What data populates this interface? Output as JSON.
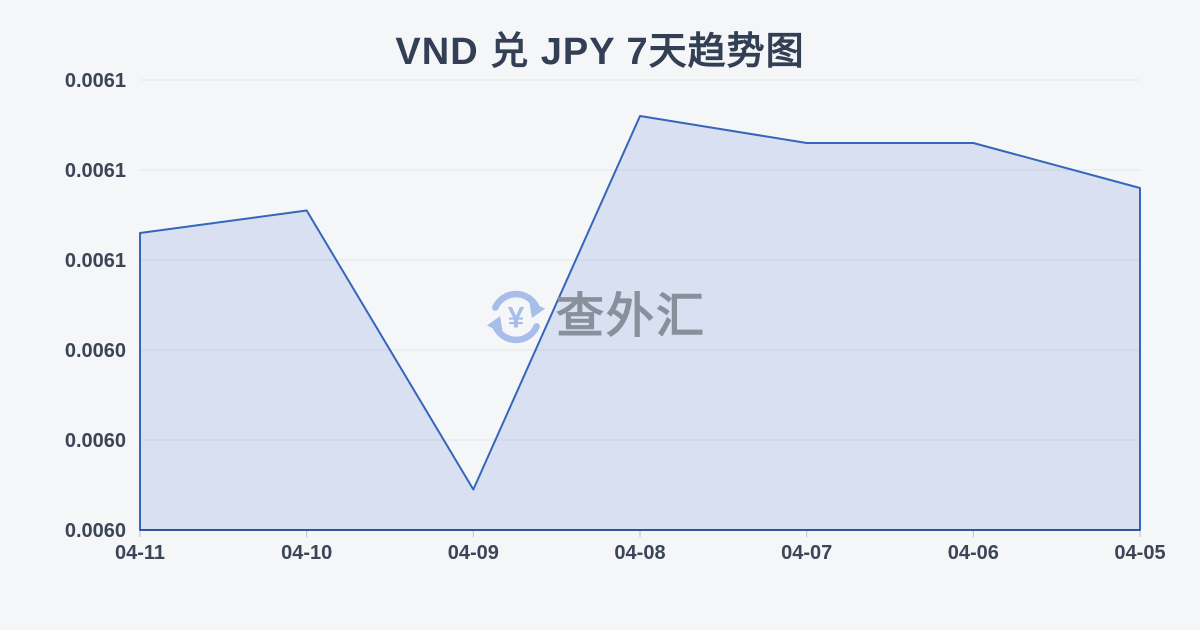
{
  "page": {
    "background": "#f5f6f8"
  },
  "header": {
    "title": "VND 兑 JPY 7天趋势图"
  },
  "watermark": {
    "label": "查外汇",
    "icon": "currency-exchange-refresh-icon",
    "icon_symbol": "¥",
    "icon_color": "#a7bdea",
    "text_color": "#8a909b"
  },
  "chart_data": {
    "type": "area",
    "title": "VND 兑 JPY 7天趋势图",
    "categories": [
      "04-11",
      "04-10",
      "04-09",
      "04-08",
      "04-07",
      "04-06",
      "04-05"
    ],
    "values": [
      0.006066,
      0.006071,
      0.006009,
      0.006092,
      0.006086,
      0.006086,
      0.006076
    ],
    "xlabel": "",
    "ylabel": "",
    "ylim": [
      0.006,
      0.0061
    ],
    "y_ticks": [
      0.006,
      0.00602,
      0.00604,
      0.00606,
      0.00608,
      0.0061
    ],
    "y_tick_labels_bottom_to_top": [
      "0.0060",
      "0.0060",
      "0.0060",
      "0.0061",
      "0.0061",
      "0.0061"
    ],
    "grid": true,
    "legend": false,
    "colors": {
      "line": "#3466b9",
      "fill": "rgba(90,125,210,0.18)",
      "grid": "#e3e5ea",
      "axis_line": "#33549b",
      "tick": "#b9bfca",
      "label": "#3c4557"
    }
  }
}
